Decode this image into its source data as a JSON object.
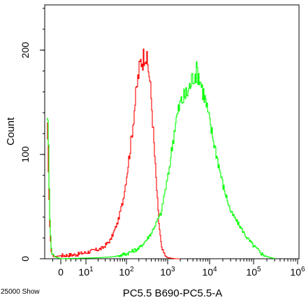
{
  "chart_data": {
    "type": "line",
    "title": "",
    "xlabel": "PC5.5 B690-PC5.5-A",
    "ylabel": "Count",
    "footer_left": "25000 Show",
    "x_scale": "biexponential",
    "xlim": [
      -20,
      1000000
    ],
    "ylim": [
      0,
      240
    ],
    "grid": false,
    "x_ticks": [
      {
        "value": 0,
        "label": "0"
      },
      {
        "value": 10,
        "label": "10",
        "exp": "1"
      },
      {
        "value": 100,
        "label": "10",
        "exp": "2"
      },
      {
        "value": 1000,
        "label": "10",
        "exp": "3"
      },
      {
        "value": 10000,
        "label": "10",
        "exp": "4"
      },
      {
        "value": 100000,
        "label": "10",
        "exp": "5"
      },
      {
        "value": 1000000,
        "label": "10",
        "exp": "6"
      }
    ],
    "y_ticks": [
      {
        "value": 0,
        "label": "0"
      },
      {
        "value": 100,
        "label": "100"
      },
      {
        "value": 200,
        "label": "200"
      }
    ],
    "series": [
      {
        "color": "#ff0000",
        "x": [
          -18,
          -16,
          -14,
          -12,
          -8,
          0,
          6,
          10,
          16,
          25,
          40,
          60,
          80,
          100,
          130,
          160,
          190,
          220,
          250,
          280,
          310,
          350,
          400,
          450,
          500,
          600,
          700,
          800,
          900,
          1000,
          1500,
          2000
        ],
        "y": [
          135,
          100,
          30,
          5,
          2,
          3,
          4,
          6,
          8,
          10,
          18,
          35,
          55,
          80,
          115,
          150,
          175,
          190,
          192,
          200,
          188,
          178,
          150,
          115,
          85,
          35,
          10,
          5,
          2,
          1,
          0,
          0
        ]
      },
      {
        "color": "#00ff00",
        "x": [
          -18,
          -16,
          -14,
          -12,
          -8,
          0,
          20,
          50,
          80,
          100,
          200,
          300,
          400,
          500,
          700,
          800,
          1000,
          1500,
          2000,
          3000,
          4000,
          5000,
          6000,
          8000,
          10000,
          15000,
          20000,
          30000,
          50000,
          70000,
          100000,
          150000,
          200000,
          300000
        ],
        "y": [
          150,
          120,
          40,
          6,
          2,
          0,
          1,
          2,
          4,
          5,
          10,
          18,
          25,
          33,
          45,
          60,
          78,
          130,
          150,
          160,
          175,
          180,
          170,
          150,
          130,
          95,
          70,
          45,
          30,
          20,
          12,
          5,
          2,
          0
        ]
      }
    ]
  }
}
